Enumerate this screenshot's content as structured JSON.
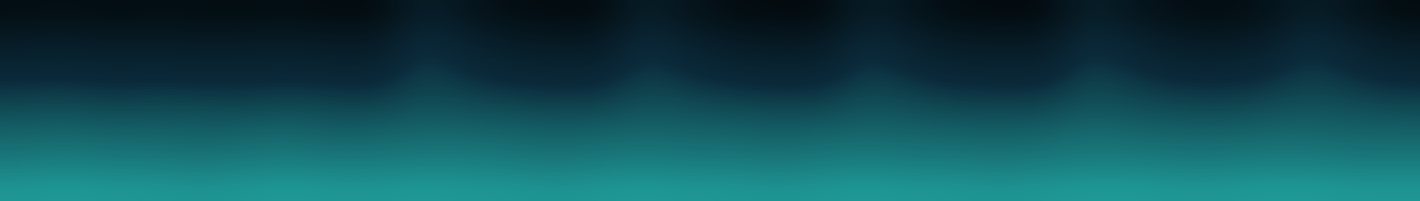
{
  "chart_data": {
    "type": "heatmap",
    "tick_labels": false,
    "color": "#2ad4c8",
    "color_range": [
      0,
      1
    ],
    "cells": [
      [
        0.16,
        0.18,
        0.15,
        0.17,
        0.16,
        0.15,
        0.17,
        0.14,
        0.13,
        0.38,
        0.25,
        0.16,
        0.14,
        0.13,
        0.37,
        0.24,
        0.15,
        0.13,
        0.12,
        0.36,
        0.24,
        0.14,
        0.13,
        0.12,
        0.38,
        0.26,
        0.17,
        0.15,
        0.2,
        0.36,
        0.24,
        0.14
      ],
      [
        0.32,
        0.33,
        0.31,
        0.32,
        0.3,
        0.31,
        0.32,
        0.3,
        0.29,
        0.5,
        0.4,
        0.31,
        0.29,
        0.28,
        0.49,
        0.39,
        0.3,
        0.28,
        0.28,
        0.48,
        0.38,
        0.3,
        0.29,
        0.28,
        0.5,
        0.41,
        0.32,
        0.3,
        0.34,
        0.49,
        0.39,
        0.3
      ],
      [
        0.43,
        0.44,
        0.42,
        0.43,
        0.42,
        0.42,
        0.43,
        0.41,
        0.41,
        0.55,
        0.48,
        0.42,
        0.41,
        0.4,
        0.54,
        0.47,
        0.42,
        0.4,
        0.4,
        0.54,
        0.47,
        0.41,
        0.41,
        0.4,
        0.55,
        0.49,
        0.43,
        0.42,
        0.45,
        0.54,
        0.47,
        0.42
      ],
      [
        0.53,
        0.54,
        0.52,
        0.53,
        0.52,
        0.52,
        0.53,
        0.52,
        0.51,
        0.58,
        0.55,
        0.52,
        0.51,
        0.51,
        0.58,
        0.55,
        0.52,
        0.51,
        0.51,
        0.58,
        0.55,
        0.52,
        0.51,
        0.51,
        0.59,
        0.56,
        0.53,
        0.52,
        0.54,
        0.58,
        0.55,
        0.52
      ],
      [
        0.61,
        0.62,
        0.6,
        0.61,
        0.61,
        0.6,
        0.62,
        0.6,
        0.6,
        0.63,
        0.62,
        0.61,
        0.6,
        0.6,
        0.63,
        0.62,
        0.61,
        0.6,
        0.6,
        0.63,
        0.62,
        0.6,
        0.6,
        0.6,
        0.64,
        0.62,
        0.61,
        0.6,
        0.62,
        0.63,
        0.62,
        0.61
      ],
      [
        0.68,
        0.69,
        0.68,
        0.68,
        0.67,
        0.68,
        0.69,
        0.67,
        0.68,
        0.69,
        0.69,
        0.68,
        0.67,
        0.68,
        0.69,
        0.68,
        0.68,
        0.67,
        0.68,
        0.69,
        0.68,
        0.68,
        0.67,
        0.68,
        0.7,
        0.69,
        0.68,
        0.68,
        0.69,
        0.69,
        0.68,
        0.68
      ],
      [
        0.74,
        0.75,
        0.74,
        0.74,
        0.73,
        0.74,
        0.75,
        0.74,
        0.74,
        0.75,
        0.75,
        0.74,
        0.73,
        0.74,
        0.75,
        0.74,
        0.74,
        0.73,
        0.74,
        0.75,
        0.74,
        0.74,
        0.73,
        0.74,
        0.75,
        0.75,
        0.74,
        0.74,
        0.75,
        0.75,
        0.74,
        0.74
      ],
      [
        0.82,
        0.83,
        0.82,
        0.82,
        0.81,
        0.82,
        0.83,
        0.82,
        0.82,
        0.83,
        0.82,
        0.82,
        0.81,
        0.82,
        0.83,
        0.82,
        0.82,
        0.81,
        0.82,
        0.83,
        0.82,
        0.82,
        0.81,
        0.82,
        0.83,
        0.83,
        0.82,
        0.82,
        0.83,
        0.83,
        0.82,
        0.82
      ]
    ]
  }
}
